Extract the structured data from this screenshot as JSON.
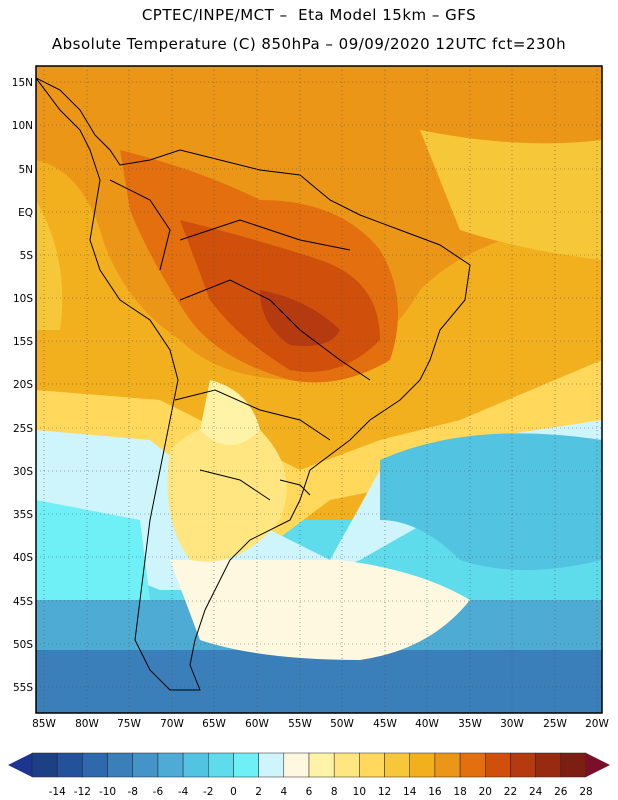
{
  "header": {
    "line1": "CPTEC/INPE/MCT –  Eta Model 15km – GFS",
    "line2": "Absolute Temperature (C) 850hPa – 09/09/2020 12UTC fct=230h"
  },
  "axes": {
    "lat_labels": [
      "15N",
      "10N",
      "5N",
      "EQ",
      "5S",
      "10S",
      "15S",
      "20S",
      "25S",
      "30S",
      "35S",
      "40S",
      "45S",
      "50S",
      "55S"
    ],
    "lon_labels": [
      "85W",
      "80W",
      "75W",
      "70W",
      "65W",
      "60W",
      "55W",
      "50W",
      "45W",
      "40W",
      "35W",
      "30W",
      "25W",
      "20W"
    ]
  },
  "colorbar": {
    "unit": "C",
    "ticks": [
      "-14",
      "-12",
      "-10",
      "-8",
      "-6",
      "-4",
      "-2",
      "0",
      "2",
      "4",
      "6",
      "8",
      "10",
      "12",
      "14",
      "16",
      "18",
      "20",
      "22",
      "24",
      "26",
      "28"
    ],
    "colors": [
      "#1d3f86",
      "#24529a",
      "#2e68ad",
      "#3a7fba",
      "#4594c8",
      "#4eabd4",
      "#52c3e1",
      "#5fdcec",
      "#6ff0f6",
      "#cdf5fb",
      "#fff8e0",
      "#fff3a8",
      "#ffe680",
      "#ffd85c",
      "#f7c73a",
      "#f2b01e",
      "#ec9618",
      "#e36f0e",
      "#cf4f0b",
      "#b53a10",
      "#992a12",
      "#7d1e12"
    ],
    "low_end_color": "#1d3590",
    "high_end_color": "#7a0f2a"
  }
}
